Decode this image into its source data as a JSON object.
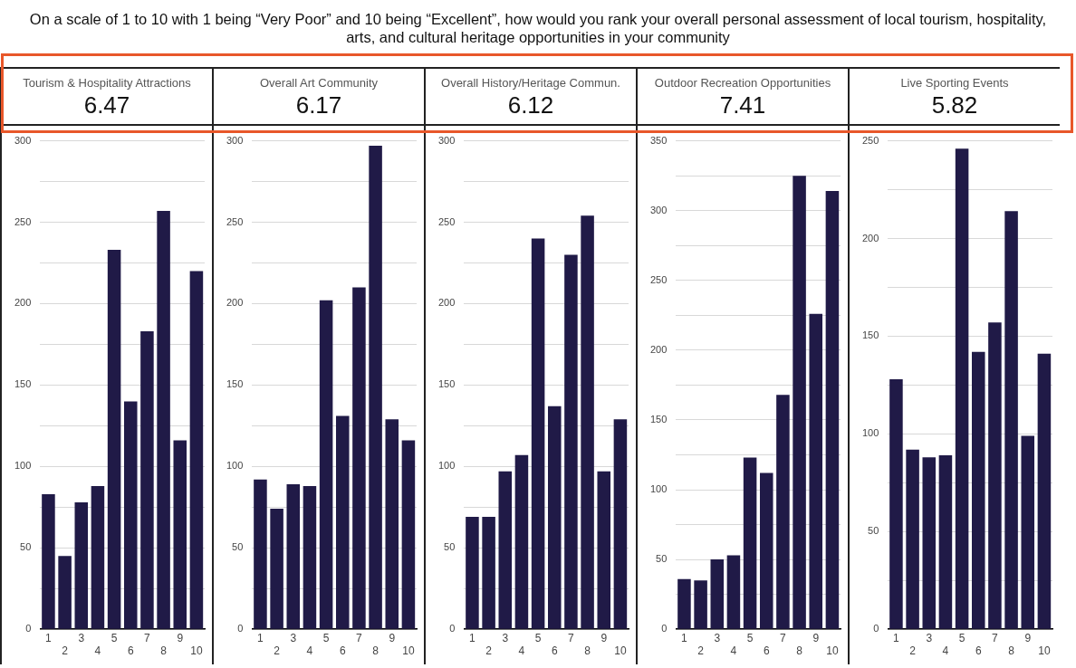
{
  "chart_data": [
    {
      "type": "other",
      "title": "On a scale of 1 to 10 with 1 being “Very Poor” and 10 being “Excellent”, how would you rank your overall personal assessment of local tourism, hospitality, arts, and cultural heritage opportunities in your community"
    },
    {
      "type": "bar",
      "title": "Tourism & Hospitality Attractions",
      "subtitle": "6.47",
      "categories": [
        "1",
        "2",
        "3",
        "4",
        "5",
        "6",
        "7",
        "8",
        "9",
        "10"
      ],
      "values": [
        83,
        45,
        78,
        88,
        233,
        140,
        183,
        257,
        116,
        220
      ],
      "color": "#201a47",
      "ylim": [
        0,
        300
      ],
      "yticks": [
        0,
        {
          "value": 25,
          "label": null
        },
        50,
        {
          "value": 75,
          "label": null
        },
        100,
        {
          "value": 125,
          "label": null
        },
        150,
        {
          "value": 175,
          "label": null
        },
        200,
        {
          "value": 225,
          "label": null
        },
        250,
        {
          "value": 275,
          "label": null
        },
        300
      ],
      "grid": "y"
    },
    {
      "type": "bar",
      "title": "Overall Art Community",
      "subtitle": "6.17",
      "categories": [
        "1",
        "2",
        "3",
        "4",
        "5",
        "6",
        "7",
        "8",
        "9",
        "10"
      ],
      "values": [
        92,
        74,
        89,
        88,
        202,
        131,
        210,
        297,
        129,
        116
      ],
      "color": "#201a47",
      "ylim": [
        0,
        300
      ],
      "yticks": [
        0,
        {
          "value": 25,
          "label": null
        },
        50,
        {
          "value": 75,
          "label": null
        },
        100,
        {
          "value": 125,
          "label": null
        },
        150,
        {
          "value": 175,
          "label": null
        },
        200,
        {
          "value": 225,
          "label": null
        },
        250,
        {
          "value": 275,
          "label": null
        },
        300
      ],
      "grid": "y"
    },
    {
      "type": "bar",
      "title": "Overall History/Heritage Commun.",
      "subtitle": "6.12",
      "categories": [
        "1",
        "2",
        "3",
        "4",
        "5",
        "6",
        "7",
        "8",
        "9",
        "10"
      ],
      "values": [
        69,
        69,
        97,
        107,
        240,
        137,
        230,
        254,
        97,
        129
      ],
      "color": "#201a47",
      "ylim": [
        0,
        300
      ],
      "yticks": [
        0,
        {
          "value": 25,
          "label": null
        },
        50,
        {
          "value": 75,
          "label": null
        },
        100,
        {
          "value": 125,
          "label": null
        },
        150,
        {
          "value": 175,
          "label": null
        },
        200,
        {
          "value": 225,
          "label": null
        },
        250,
        {
          "value": 275,
          "label": null
        },
        300
      ],
      "grid": "y"
    },
    {
      "type": "bar",
      "title": "Outdoor Recreation Opportunities",
      "subtitle": "7.41",
      "categories": [
        "1",
        "2",
        "3",
        "4",
        "5",
        "6",
        "7",
        "8",
        "9",
        "10"
      ],
      "values": [
        36,
        35,
        50,
        53,
        123,
        112,
        168,
        325,
        226,
        314
      ],
      "color": "#201a47",
      "ylim": [
        0,
        350
      ],
      "yticks": [
        0,
        {
          "value": 25,
          "label": null
        },
        50,
        {
          "value": 75,
          "label": null
        },
        100,
        {
          "value": 125,
          "label": null
        },
        150,
        {
          "value": 175,
          "label": null
        },
        200,
        {
          "value": 225,
          "label": null
        },
        250,
        {
          "value": 275,
          "label": null
        },
        300,
        {
          "value": 325,
          "label": null
        },
        350
      ],
      "grid": "y"
    },
    {
      "type": "bar",
      "title": "Live Sporting Events",
      "subtitle": "5.82",
      "categories": [
        "1",
        "2",
        "3",
        "4",
        "5",
        "6",
        "7",
        "8",
        "9",
        "10"
      ],
      "values": [
        128,
        92,
        88,
        89,
        246,
        142,
        157,
        214,
        99,
        141
      ],
      "color": "#201a47",
      "ylim": [
        0,
        250
      ],
      "yticks": [
        0,
        {
          "value": 25,
          "label": null
        },
        50,
        {
          "value": 75,
          "label": null
        },
        100,
        {
          "value": 125,
          "label": null
        },
        150,
        {
          "value": 175,
          "label": null
        },
        200,
        {
          "value": 225,
          "label": null
        },
        250
      ],
      "grid": "y"
    }
  ]
}
